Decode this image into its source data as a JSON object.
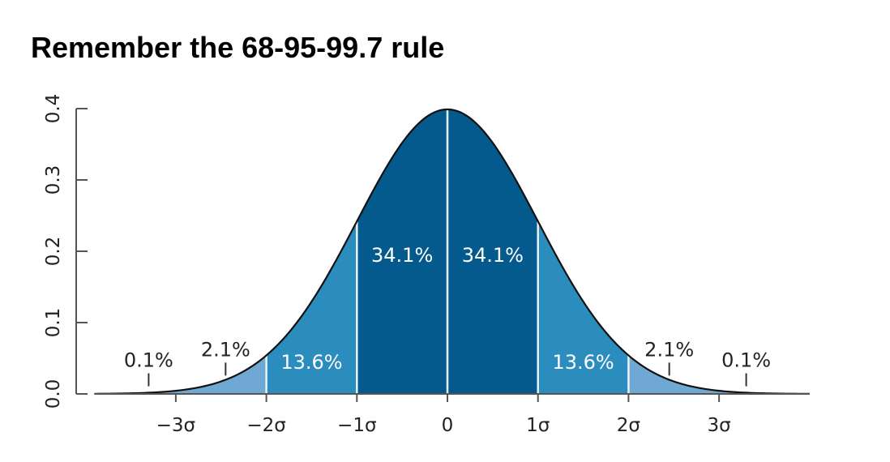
{
  "title": "Remember the 68-95-99.7 rule",
  "chart_data": {
    "type": "area",
    "title": "Remember the 68-95-99.7 rule",
    "xlabel": "",
    "ylabel": "",
    "xlim": [
      -3.9,
      4.0
    ],
    "ylim": [
      0,
      0.4
    ],
    "grid": false,
    "y_ticks": [
      {
        "value": 0.0,
        "label": "0.0"
      },
      {
        "value": 0.1,
        "label": "0.1"
      },
      {
        "value": 0.2,
        "label": "0.2"
      },
      {
        "value": 0.3,
        "label": "0.3"
      },
      {
        "value": 0.4,
        "label": "0.4"
      }
    ],
    "x_ticks": [
      {
        "value": -3,
        "label": "−3σ"
      },
      {
        "value": -2,
        "label": "−2σ"
      },
      {
        "value": -1,
        "label": "−1σ"
      },
      {
        "value": 0,
        "label": "0"
      },
      {
        "value": 1,
        "label": "1σ"
      },
      {
        "value": 2,
        "label": "2σ"
      },
      {
        "value": 3,
        "label": "3σ"
      }
    ],
    "curve": "standard normal density",
    "regions": [
      {
        "from": -3.9,
        "to": -2,
        "color": "#6fa8d2"
      },
      {
        "from": -2,
        "to": -1,
        "color": "#2b8cbe"
      },
      {
        "from": -1,
        "to": 0,
        "color": "#045a8d"
      },
      {
        "from": 0,
        "to": 1,
        "color": "#045a8d"
      },
      {
        "from": 1,
        "to": 2,
        "color": "#2b8cbe"
      },
      {
        "from": 2,
        "to": 4.0,
        "color": "#6fa8d2"
      }
    ],
    "boundaries": [
      -2,
      -1,
      0,
      1,
      2
    ],
    "labels": [
      {
        "text": "34.1%",
        "x": -0.5,
        "y": 0.185,
        "color": "#ffffff"
      },
      {
        "text": "34.1%",
        "x": 0.5,
        "y": 0.185,
        "color": "#ffffff"
      },
      {
        "text": "13.6%",
        "x": -1.5,
        "y": 0.035,
        "color": "#ffffff"
      },
      {
        "text": "13.6%",
        "x": 1.5,
        "y": 0.035,
        "color": "#ffffff"
      },
      {
        "text": "2.1%",
        "x": -2.45,
        "y": 0.053,
        "color": "#222222",
        "tick": true
      },
      {
        "text": "2.1%",
        "x": 2.45,
        "y": 0.053,
        "color": "#222222",
        "tick": true
      },
      {
        "text": "0.1%",
        "x": -3.3,
        "y": 0.038,
        "color": "#222222",
        "tick": true
      },
      {
        "text": "0.1%",
        "x": 3.3,
        "y": 0.038,
        "color": "#222222",
        "tick": true
      }
    ],
    "colors": {
      "curve": "#111111",
      "axis": "#555555",
      "boundary": "#e8f2f8"
    }
  }
}
